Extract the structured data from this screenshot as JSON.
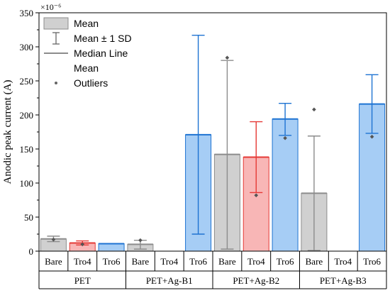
{
  "chart_data": {
    "type": "bar",
    "ylabel": "Anodic peak current (A)",
    "y_multiplier": "×10⁻⁶",
    "ylim": [
      0,
      350
    ],
    "yticks": [
      0,
      50,
      100,
      150,
      200,
      250,
      300,
      350
    ],
    "groups": [
      "PET",
      "PET+Ag-B1",
      "PET+Ag-B2",
      "PET+Ag-B3"
    ],
    "categories": [
      "Bare",
      "Tro4",
      "Tro6"
    ],
    "colors": {
      "Bare": {
        "fill": "#d0d0d0",
        "stroke": "#8c8c8c"
      },
      "Tro4": {
        "fill": "#f8b6b6",
        "stroke": "#e53935"
      },
      "Tro6": {
        "fill": "#a6cdf5",
        "stroke": "#1e73d2"
      }
    },
    "bars": [
      {
        "group": "PET",
        "category": "Bare",
        "mean": 18,
        "sd_low": 14,
        "sd_high": 22,
        "outliers": [
          17
        ]
      },
      {
        "group": "PET",
        "category": "Tro4",
        "mean": 12,
        "sd_low": 9,
        "sd_high": 15,
        "outliers": [
          10
        ]
      },
      {
        "group": "PET",
        "category": "Tro6",
        "mean": 11,
        "sd_low": 11,
        "sd_high": 11,
        "outliers": []
      },
      {
        "group": "PET+Ag-B1",
        "category": "Bare",
        "mean": 10,
        "sd_low": 3,
        "sd_high": 16,
        "outliers": [
          16
        ]
      },
      {
        "group": "PET+Ag-B1",
        "category": "Tro4",
        "mean": null,
        "sd_low": null,
        "sd_high": null,
        "outliers": []
      },
      {
        "group": "PET+Ag-B1",
        "category": "Tro6",
        "mean": 171,
        "sd_low": 25,
        "sd_high": 317,
        "outliers": []
      },
      {
        "group": "PET+Ag-B2",
        "category": "Bare",
        "mean": 142,
        "sd_low": 3,
        "sd_high": 280,
        "outliers": [
          284
        ]
      },
      {
        "group": "PET+Ag-B2",
        "category": "Tro4",
        "mean": 138,
        "sd_low": 86,
        "sd_high": 190,
        "outliers": [
          82
        ]
      },
      {
        "group": "PET+Ag-B2",
        "category": "Tro6",
        "mean": 194,
        "sd_low": 170,
        "sd_high": 217,
        "outliers": [
          166
        ]
      },
      {
        "group": "PET+Ag-B3",
        "category": "Bare",
        "mean": 85,
        "sd_low": 1,
        "sd_high": 169,
        "outliers": [
          208
        ]
      },
      {
        "group": "PET+Ag-B3",
        "category": "Tro4",
        "mean": null,
        "sd_low": null,
        "sd_high": null,
        "outliers": []
      },
      {
        "group": "PET+Ag-B3",
        "category": "Tro6",
        "mean": 216,
        "sd_low": 173,
        "sd_high": 259,
        "outliers": [
          168
        ]
      }
    ],
    "legend": {
      "position": "top-left",
      "entries": [
        "Mean",
        "Mean ± 1 SD",
        "Median Line",
        "Mean",
        "Outliers"
      ]
    }
  }
}
